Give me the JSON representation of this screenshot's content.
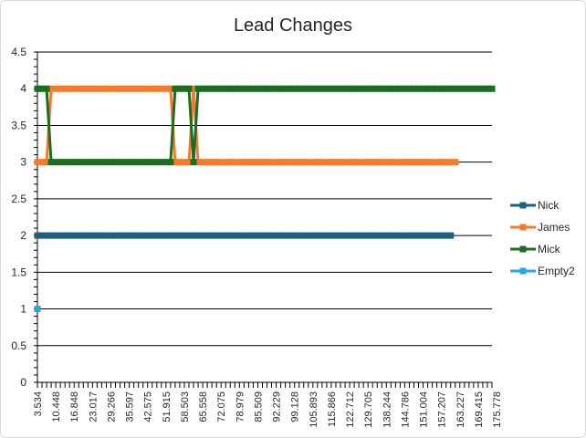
{
  "chart_data": {
    "type": "line",
    "title": "Lead Changes",
    "xlabel": "",
    "ylabel": "",
    "ylim": [
      0,
      4.5
    ],
    "yticks": [
      "0",
      "0.5",
      "1",
      "1.5",
      "2",
      "2.5",
      "3",
      "3.5",
      "4",
      "4.5"
    ],
    "xtick_labels": [
      "3.534",
      "10.448",
      "16.848",
      "23.017",
      "29.266",
      "35.597",
      "42.575",
      "51.915",
      "58.503",
      "65.558",
      "72.075",
      "78.979",
      "85.509",
      "92.229",
      "99.128",
      "105.893",
      "115.866",
      "122.712",
      "129.705",
      "138.244",
      "144.786",
      "151.004",
      "157.207",
      "163.227",
      "169.415",
      "175.778"
    ],
    "grid": true,
    "legend_position": "right",
    "series": [
      {
        "name": "Nick",
        "color": "#1f5f7f",
        "values": [
          2,
          2,
          2,
          2,
          2,
          2,
          2,
          2,
          2,
          2,
          2,
          2,
          2,
          2,
          2,
          2,
          2,
          2,
          2,
          2,
          2,
          2,
          2,
          2,
          2,
          2,
          2,
          2,
          2,
          2,
          2,
          2,
          2,
          2,
          2,
          2,
          2,
          2,
          2,
          2,
          2,
          2,
          2,
          2,
          2,
          2,
          2,
          2,
          2,
          2,
          2,
          2,
          2,
          2,
          2,
          2,
          2,
          2,
          2,
          2,
          2,
          2,
          2,
          2,
          2,
          2,
          2,
          2,
          2,
          2,
          2,
          2,
          2,
          2,
          2,
          2,
          2,
          2,
          2,
          2,
          2,
          2,
          2,
          2,
          2,
          2,
          2,
          2,
          2,
          2,
          2
        ]
      },
      {
        "name": "James",
        "color": "#ed7d31",
        "values": [
          3,
          3,
          3,
          4,
          4,
          4,
          4,
          4,
          4,
          4,
          4,
          4,
          4,
          4,
          4,
          4,
          4,
          4,
          4,
          4,
          4,
          4,
          4,
          4,
          4,
          4,
          4,
          4,
          4,
          4,
          3,
          3,
          3,
          3,
          4,
          3,
          3,
          3,
          3,
          3,
          3,
          3,
          3,
          3,
          3,
          3,
          3,
          3,
          3,
          3,
          3,
          3,
          3,
          3,
          3,
          3,
          3,
          3,
          3,
          3,
          3,
          3,
          3,
          3,
          3,
          3,
          3,
          3,
          3,
          3,
          3,
          3,
          3,
          3,
          3,
          3,
          3,
          3,
          3,
          3,
          3,
          3,
          3,
          3,
          3,
          3,
          3,
          3,
          3,
          3,
          3,
          3
        ]
      },
      {
        "name": "Mick",
        "color": "#1e6b24",
        "values": [
          4,
          4,
          4,
          3,
          3,
          3,
          3,
          3,
          3,
          3,
          3,
          3,
          3,
          3,
          3,
          3,
          3,
          3,
          3,
          3,
          3,
          3,
          3,
          3,
          3,
          3,
          3,
          3,
          3,
          3,
          4,
          4,
          4,
          4,
          3,
          4,
          4,
          4,
          4,
          4,
          4,
          4,
          4,
          4,
          4,
          4,
          4,
          4,
          4,
          4,
          4,
          4,
          4,
          4,
          4,
          4,
          4,
          4,
          4,
          4,
          4,
          4,
          4,
          4,
          4,
          4,
          4,
          4,
          4,
          4,
          4,
          4,
          4,
          4,
          4,
          4,
          4,
          4,
          4,
          4,
          4,
          4,
          4,
          4,
          4,
          4,
          4,
          4,
          4,
          4,
          4,
          4,
          4,
          4,
          4,
          4,
          4,
          4,
          4,
          4
        ]
      },
      {
        "name": "Empty2",
        "color": "#2aa7d9",
        "values": [
          1
        ]
      }
    ]
  }
}
